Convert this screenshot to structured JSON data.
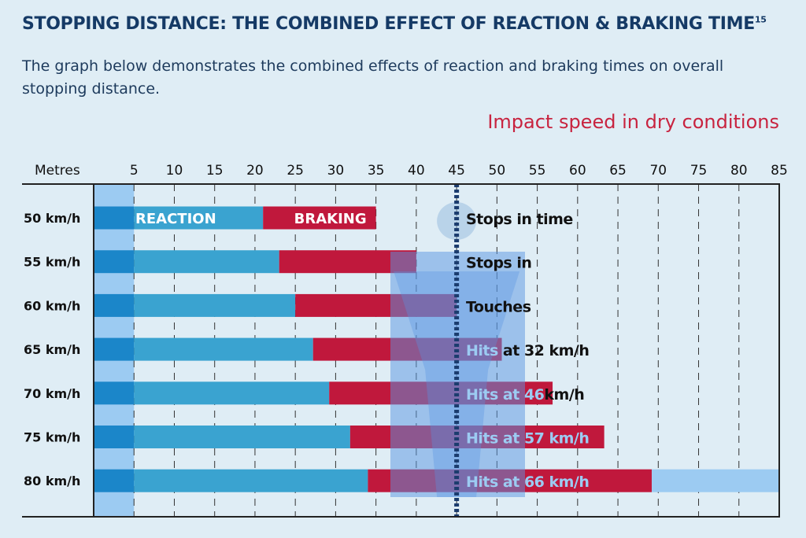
{
  "title": "STOPPING DISTANCE: THE COMBINED EFFECT OF REACTION & BRAKING TIME",
  "title_footnote": "15",
  "subtitle": "The graph below demonstrates the combined effects of reaction and braking times on overall stopping distance.",
  "annotation_title": "Impact speed in dry conditions",
  "chart_data": {
    "type": "bar",
    "orientation": "horizontal",
    "stacked": true,
    "xlabel": "Metres",
    "xlim": [
      0,
      85
    ],
    "xticks": [
      5,
      10,
      15,
      20,
      25,
      30,
      35,
      40,
      45,
      50,
      55,
      60,
      65,
      70,
      75,
      80,
      85
    ],
    "grid": true,
    "categories": [
      "50 km/h",
      "55 km/h",
      "60 km/h",
      "65 km/h",
      "70 km/h",
      "75 km/h",
      "80 km/h"
    ],
    "series": [
      {
        "name": "REACTION",
        "values": [
          21,
          23,
          25,
          27.2,
          29.2,
          31.8,
          34
        ],
        "color": "#3aa3d0"
      },
      {
        "name": "BRAKING",
        "values": [
          14,
          17,
          20,
          23.4,
          27.7,
          31.5,
          35.2
        ],
        "color": "#c0183c"
      }
    ],
    "pedestrian_distance": 45,
    "outcomes": [
      [
        {
          "text": "Stops in time",
          "hl": false
        }
      ],
      [
        {
          "text": "Stops in",
          "hl": false
        }
      ],
      [
        {
          "text": "Touches",
          "hl": false
        }
      ],
      [
        {
          "text": "Hits",
          "hl": true
        },
        {
          "text": " at 32 km/h",
          "hl": false
        }
      ],
      [
        {
          "text": "Hits at 46",
          "hl": true
        },
        {
          "text": "km/h",
          "hl": false
        }
      ],
      [
        {
          "text": "Hits at 57 km/h",
          "hl": true
        }
      ],
      [
        {
          "text": "Hits at 66 km/h",
          "hl": true
        }
      ]
    ],
    "colors": {
      "first_5m": "#1b86c9",
      "band": "#9ccbf2",
      "pedestrian": "#6aa8e6",
      "marker": "#1b3c6e",
      "highlight_text": "#9ccbf2"
    }
  }
}
